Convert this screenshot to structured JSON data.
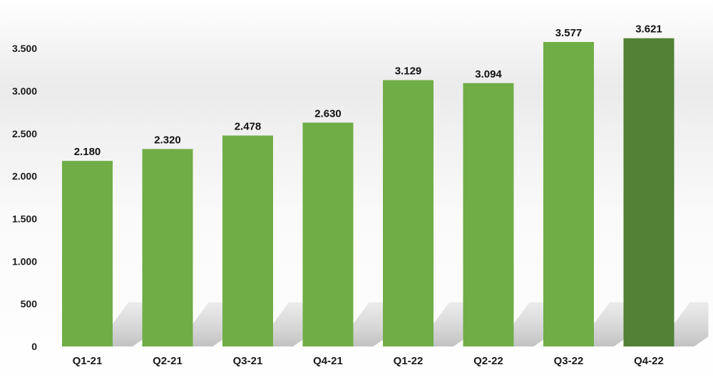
{
  "chart_data": {
    "type": "bar",
    "title": "",
    "xlabel": "",
    "ylabel": "",
    "categories": [
      "Q1-21",
      "Q2-21",
      "Q3-21",
      "Q4-21",
      "Q1-22",
      "Q2-22",
      "Q3-22",
      "Q4-22"
    ],
    "values": [
      2180,
      2320,
      2478,
      2630,
      3129,
      3094,
      3577,
      3621
    ],
    "value_labels": [
      "2.180",
      "2.320",
      "2.478",
      "2.630",
      "3.129",
      "3.094",
      "3.577",
      "3.621"
    ],
    "ylim": [
      0,
      3500
    ],
    "yticks": [
      0,
      500,
      1000,
      1500,
      2000,
      2500,
      3000,
      3500
    ],
    "ytick_labels": [
      "0",
      "500",
      "1.000",
      "1.500",
      "2.000",
      "2.500",
      "3.000",
      "3.500"
    ],
    "grid": false,
    "legend": "none",
    "colors": {
      "bar": "#70ad47",
      "highlight_bar": "#538135",
      "background_band": "#e6e6e6",
      "shadow": "#c8c8c8"
    },
    "highlight_index": 7
  }
}
